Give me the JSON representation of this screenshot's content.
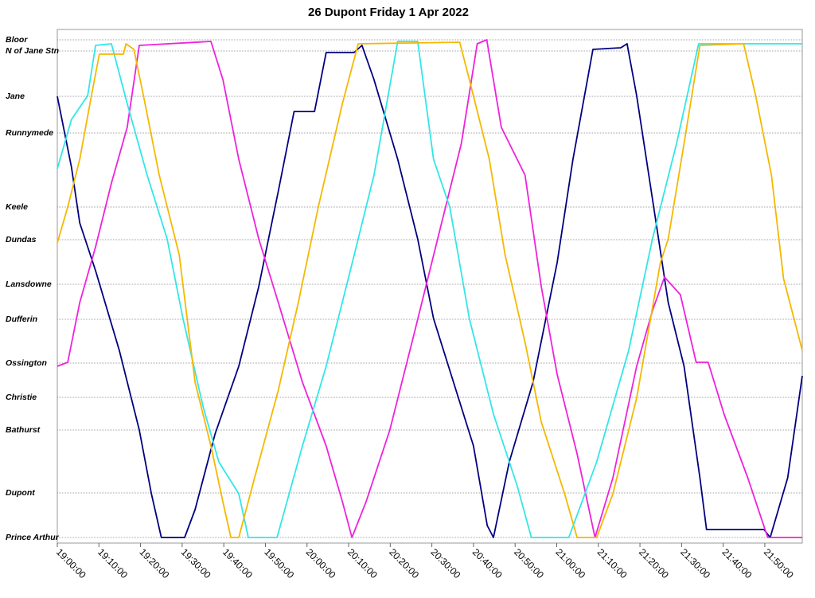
{
  "chart_data": {
    "type": "line",
    "title": "26 Dupont Friday 1 Apr 2022",
    "xlim": [
      0,
      179
    ],
    "ylim": [
      -7,
      638
    ],
    "xticks": [
      {
        "value": 0,
        "label": "19:00:00"
      },
      {
        "value": 10,
        "label": "19:10:00"
      },
      {
        "value": 20,
        "label": "19:20:00"
      },
      {
        "value": 30,
        "label": "19:30:00"
      },
      {
        "value": 40,
        "label": "19:40:00"
      },
      {
        "value": 50,
        "label": "19:50:00"
      },
      {
        "value": 60,
        "label": "20:00:00"
      },
      {
        "value": 70,
        "label": "20:10:00"
      },
      {
        "value": 80,
        "label": "20:20:00"
      },
      {
        "value": 90,
        "label": "20:30:00"
      },
      {
        "value": 100,
        "label": "20:40:00"
      },
      {
        "value": 110,
        "label": "20:50:00"
      },
      {
        "value": 120,
        "label": "21:00:00"
      },
      {
        "value": 130,
        "label": "21:10:00"
      },
      {
        "value": 140,
        "label": "21:20:00"
      },
      {
        "value": 150,
        "label": "21:30:00"
      },
      {
        "value": 160,
        "label": "21:40:00"
      },
      {
        "value": 170,
        "label": "21:50:00"
      }
    ],
    "yticks": [
      {
        "value": 625,
        "label": "Bloor"
      },
      {
        "value": 611,
        "label": "N of Jane Stn"
      },
      {
        "value": 554,
        "label": "Jane"
      },
      {
        "value": 508,
        "label": "Runnymede"
      },
      {
        "value": 415,
        "label": "Keele"
      },
      {
        "value": 374,
        "label": "Dundas"
      },
      {
        "value": 318,
        "label": "Lansdowne"
      },
      {
        "value": 274,
        "label": "Dufferin"
      },
      {
        "value": 219,
        "label": "Ossington"
      },
      {
        "value": 176,
        "label": "Christie"
      },
      {
        "value": 135,
        "label": "Bathurst"
      },
      {
        "value": 56,
        "label": "Dupont"
      },
      {
        "value": 0,
        "label": "Prince Arthur"
      }
    ],
    "grid": true,
    "series": [
      {
        "color": "#000080",
        "x": [
          0,
          3.4,
          5.4,
          9.2,
          14.9,
          19.7,
          22.6,
          25,
          30.6,
          33.1,
          37.9,
          43.6,
          48.4,
          53.1,
          56.9,
          61.8,
          64.6,
          71.3,
          73.2,
          76.1,
          81.8,
          86.6,
          90.4,
          95.2,
          100,
          103.3,
          104.8,
          108.6,
          114.3,
          120.1,
          123.9,
          128.7,
          135.4,
          136.9,
          139.2,
          143,
          146.8,
          150.6,
          154.4,
          156,
          169.8,
          171.3,
          175.5,
          179
        ],
        "values": [
          554,
          465,
          395,
          335,
          235,
          135,
          55,
          0,
          0,
          35,
          130,
          215,
          315,
          435,
          535,
          535,
          609,
          609,
          618,
          575,
          475,
          375,
          275,
          195,
          115,
          15,
          0,
          95,
          195,
          345,
          475,
          613,
          615,
          620,
          555,
          425,
          295,
          215,
          75,
          10,
          10,
          0,
          75,
          203
        ]
      },
      {
        "color": "#ee22dd",
        "x": [
          0,
          2.5,
          5.4,
          9.2,
          13,
          16.8,
          19.7,
          36.9,
          39.8,
          43.6,
          48.4,
          53.1,
          58.9,
          64.6,
          68.5,
          70.8,
          74.2,
          79.9,
          85.7,
          91.4,
          97.1,
          100.9,
          103.2,
          106.7,
          112.4,
          116.3,
          120.1,
          124.9,
          129.2,
          133.5,
          139.2,
          143,
          145.9,
          149.7,
          153.5,
          156.4,
          160.2,
          165.9,
          170.7,
          179
        ],
        "values": [
          215,
          220,
          295,
          365,
          445,
          515,
          618,
          623,
          575,
          475,
          375,
          295,
          195,
          115,
          45,
          0,
          45,
          135,
          255,
          375,
          495,
          620,
          625,
          515,
          455,
          315,
          205,
          105,
          0,
          75,
          215,
          285,
          327,
          305,
          220,
          220,
          155,
          75,
          0,
          0
        ]
      },
      {
        "color": "#33e6e6",
        "x": [
          0,
          3.4,
          7.3,
          9.2,
          13,
          16.8,
          21.6,
          26.4,
          30.2,
          35,
          38.8,
          43.6,
          45.9,
          52.8,
          58.9,
          64.6,
          70.4,
          76.1,
          81.8,
          86.6,
          90.4,
          94.3,
          99,
          104.8,
          110.5,
          113.9,
          122.9,
          129.6,
          137.3,
          143,
          148.8,
          154.1,
          179
        ],
        "values": [
          463,
          525,
          555,
          618,
          620,
          545,
          455,
          375,
          275,
          165,
          95,
          55,
          0,
          0,
          115,
          215,
          335,
          455,
          623,
          623,
          475,
          415,
          275,
          155,
          65,
          0,
          0,
          95,
          235,
          375,
          495,
          620,
          620
        ]
      },
      {
        "color": "#f5b800",
        "x": [
          0,
          2.5,
          5.4,
          8.2,
          10.1,
          15.9,
          16.5,
          18.4,
          20.7,
          24.5,
          29.3,
          33.1,
          36.9,
          40.2,
          41.7,
          43.6,
          47.4,
          53.1,
          57.9,
          62.7,
          68.5,
          72.3,
          96.7,
          99,
          103.8,
          107.6,
          112.4,
          116.3,
          121.9,
          124.9,
          129.6,
          133.5,
          139.2,
          144.9,
          146.8,
          150.6,
          154.4,
          164.9,
          167.8,
          171.6,
          174.5,
          179
        ],
        "values": [
          370,
          415,
          475,
          555,
          607,
          607,
          620,
          613,
          555,
          455,
          355,
          195,
          115,
          35,
          0,
          0,
          75,
          185,
          295,
          415,
          545,
          620,
          622,
          575,
          475,
          355,
          245,
          145,
          55,
          0,
          0,
          55,
          175,
          345,
          375,
          495,
          618,
          620,
          555,
          455,
          325,
          235
        ]
      }
    ]
  }
}
